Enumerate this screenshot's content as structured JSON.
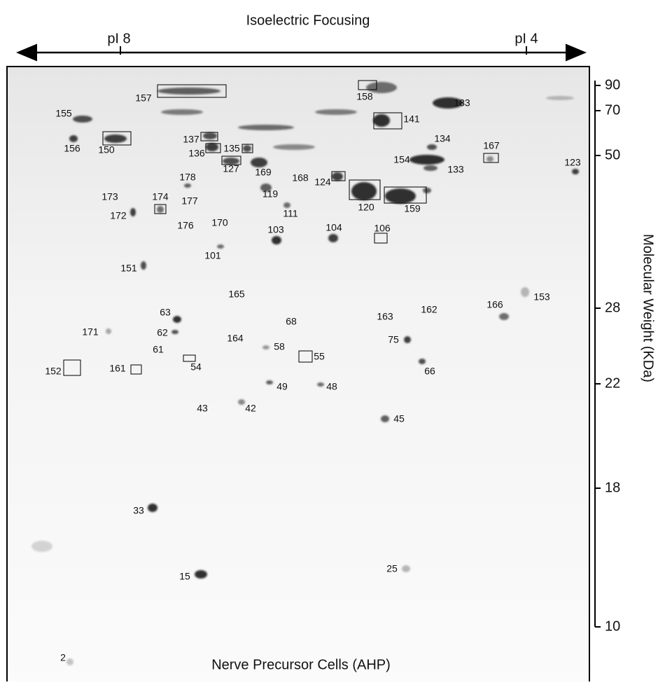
{
  "header": {
    "title": "Isoelectric Focusing",
    "ph_labels": [
      "pI 8",
      "pI 4"
    ]
  },
  "mw_axis": {
    "label": "Molecular Weight (KDa)",
    "ticks": [
      "90",
      "70",
      "50",
      "28",
      "22",
      "18",
      "10"
    ]
  },
  "gel": {
    "caption": "Nerve Precursor Cells (AHP)",
    "spots": [
      "157",
      "158",
      "183",
      "155",
      "141",
      "137",
      "134",
      "156",
      "150",
      "136",
      "135",
      "167",
      "154",
      "127",
      "123",
      "133",
      "178",
      "169",
      "168",
      "124",
      "173",
      "119",
      "120",
      "159",
      "174",
      "177",
      "172",
      "111",
      "176",
      "170",
      "104",
      "106",
      "103",
      "101",
      "151",
      "153",
      "165",
      "166",
      "162",
      "63",
      "163",
      "68",
      "171",
      "62",
      "164",
      "75",
      "58",
      "61",
      "55",
      "54",
      "152",
      "161",
      "66",
      "49",
      "48",
      "43",
      "42",
      "45",
      "33",
      "25",
      "15",
      "2"
    ]
  }
}
